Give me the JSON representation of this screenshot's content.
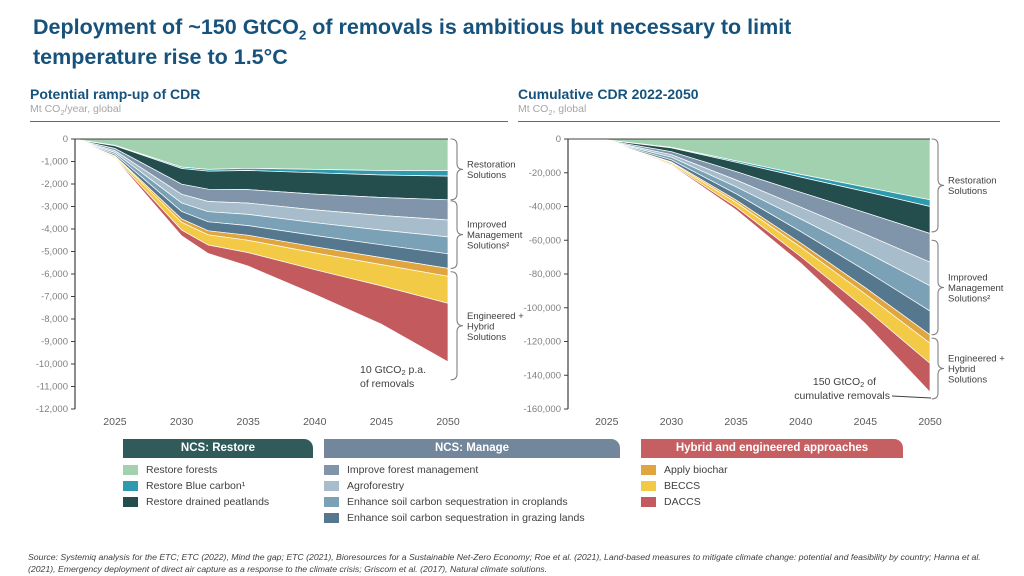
{
  "title": {
    "p1": "Deployment of ~150 GtCO",
    "sub": "2",
    "p2": " of removals is ambitious but necessary to limit",
    "line2": "temperature rise to 1.5°C"
  },
  "colors": {
    "title_navy": "#16527c",
    "header_underline": "#41719c",
    "axis_line": "#404040",
    "axis_text": "#7f7f7f",
    "xtick_text": "#595959",
    "brace": "#808080",
    "bracket_label": "#404040",
    "annotation_text": "#404040"
  },
  "chart_data": [
    {
      "type": "area",
      "stacked": true,
      "title": "Potential ramp-up of CDR",
      "unit_pre": "Mt CO",
      "unit_sub": "2",
      "unit_post": "/year, global",
      "x": [
        2022,
        2025,
        2030,
        2032,
        2035,
        2040,
        2045,
        2050
      ],
      "xticks": [
        2025,
        2030,
        2035,
        2040,
        2045,
        2050
      ],
      "ylim": [
        -12000,
        0
      ],
      "ytick_step": 1000,
      "grid": false,
      "legend_position": "bottom",
      "series": [
        {
          "name": "Restore forests",
          "color": "#a2d1af",
          "values": [
            -20,
            -280,
            -1250,
            -1350,
            -1300,
            -1350,
            -1400,
            -1400
          ]
        },
        {
          "name": "Restore Blue carbon",
          "color": "#2e9aae",
          "values": [
            -2,
            -20,
            -60,
            -80,
            -100,
            -150,
            -200,
            -250
          ]
        },
        {
          "name": "Restore drained peatlands",
          "color": "#234e4d",
          "values": [
            -5,
            -120,
            -700,
            -800,
            -850,
            -950,
            -1000,
            -1050
          ]
        },
        {
          "name": "Improve forest management",
          "color": "#8095a9",
          "values": [
            -5,
            -100,
            -450,
            -550,
            -600,
            -700,
            -800,
            -900
          ]
        },
        {
          "name": "Agroforestry",
          "color": "#a7bdcb",
          "values": [
            -3,
            -80,
            -380,
            -450,
            -500,
            -570,
            -650,
            -750
          ]
        },
        {
          "name": "Enhance soil carbon sequestration in croplands",
          "color": "#7ba1b6",
          "values": [
            -3,
            -80,
            -380,
            -450,
            -500,
            -570,
            -650,
            -750
          ]
        },
        {
          "name": "Enhance soil carbon sequestration in grazing lands",
          "color": "#56788f",
          "values": [
            -3,
            -70,
            -330,
            -400,
            -430,
            -500,
            -570,
            -650
          ]
        },
        {
          "name": "Apply biochar",
          "color": "#e0a53e",
          "values": [
            -1,
            -30,
            -150,
            -180,
            -220,
            -270,
            -310,
            -350
          ]
        },
        {
          "name": "BECCS",
          "color": "#f3ca45",
          "values": [
            -2,
            -60,
            -350,
            -450,
            -550,
            -750,
            -950,
            -1200
          ]
        },
        {
          "name": "DACCS",
          "color": "#c25a5e",
          "values": [
            -1,
            -30,
            -250,
            -380,
            -600,
            -1100,
            -1700,
            -2600
          ]
        }
      ],
      "brackets": [
        {
          "label_lines": [
            "Restoration",
            "Solutions"
          ],
          "span": [
            0,
            -2700
          ]
        },
        {
          "label_lines": [
            "Improved",
            "Management",
            "Solutions²"
          ],
          "span": [
            -2750,
            -5750
          ]
        },
        {
          "label_lines": [
            "Engineered +",
            "Hybrid",
            "Solutions"
          ],
          "span": [
            -5900,
            -10700
          ]
        }
      ],
      "annotation": {
        "pre": "10 GtCO",
        "sub": "2",
        "post": " p.a.",
        "line2": "of removals"
      }
    },
    {
      "type": "area",
      "stacked": true,
      "title": "Cumulative CDR 2022-2050",
      "unit_pre": "Mt CO",
      "unit_sub": "2",
      "unit_post": ", global",
      "x": [
        2022,
        2025,
        2030,
        2035,
        2040,
        2045,
        2050
      ],
      "xticks": [
        2025,
        2030,
        2035,
        2040,
        2045,
        2050
      ],
      "ylim": [
        -160000,
        0
      ],
      "ytick_step": 20000,
      "grid": false,
      "legend_position": "bottom",
      "series": [
        {
          "name": "Restore forests",
          "color": "#a2d1af",
          "values": [
            0,
            -600,
            -5000,
            -13000,
            -21000,
            -28500,
            -36000
          ]
        },
        {
          "name": "Restore Blue carbon",
          "color": "#2e9aae",
          "values": [
            0,
            -40,
            -300,
            -800,
            -1600,
            -2700,
            -4000
          ]
        },
        {
          "name": "Restore drained peatlands",
          "color": "#234e4d",
          "values": [
            0,
            -250,
            -2200,
            -5500,
            -9000,
            -12500,
            -16000
          ]
        },
        {
          "name": "Improve forest management",
          "color": "#8095a9",
          "values": [
            0,
            -200,
            -1800,
            -5000,
            -8800,
            -12800,
            -17000
          ]
        },
        {
          "name": "Agroforestry",
          "color": "#a7bdcb",
          "values": [
            0,
            -160,
            -1500,
            -4000,
            -7000,
            -10400,
            -14000
          ]
        },
        {
          "name": "Enhance soil carbon sequestration in croplands",
          "color": "#7ba1b6",
          "values": [
            0,
            -160,
            -1500,
            -4200,
            -7500,
            -11100,
            -15000
          ]
        },
        {
          "name": "Enhance soil carbon sequestration in grazing lands",
          "color": "#56788f",
          "values": [
            0,
            -140,
            -1300,
            -3700,
            -6700,
            -10200,
            -14000
          ]
        },
        {
          "name": "Apply biochar",
          "color": "#e0a53e",
          "values": [
            0,
            -60,
            -500,
            -1400,
            -2500,
            -3700,
            -5000
          ]
        },
        {
          "name": "BECCS",
          "color": "#f3ca45",
          "values": [
            0,
            -120,
            -900,
            -2700,
            -5500,
            -8600,
            -12000
          ]
        },
        {
          "name": "DACCS",
          "color": "#c25a5e",
          "values": [
            0,
            -70,
            -500,
            -1700,
            -4000,
            -9000,
            -17000
          ]
        }
      ],
      "brackets": [
        {
          "label_lines": [
            "Restoration",
            "Solutions"
          ],
          "span": [
            0,
            -55000
          ]
        },
        {
          "label_lines": [
            "Improved",
            "Management",
            "Solutions²"
          ],
          "span": [
            -60000,
            -116000
          ]
        },
        {
          "label_lines": [
            "Engineered +",
            "Hybrid",
            "Solutions"
          ],
          "span": [
            -118000,
            -154000
          ]
        }
      ],
      "annotation": {
        "pre": "150 GtCO",
        "sub": "2",
        "post": " of",
        "line2": "cumulative removals"
      }
    }
  ],
  "legend": {
    "groups": [
      {
        "title": "NCS: Restore",
        "color": "#315b5b",
        "items": [
          {
            "label": "Restore forests",
            "color": "#a2d1af"
          },
          {
            "label": "Restore Blue carbon¹",
            "color": "#2e9aae"
          },
          {
            "label": "Restore drained peatlands",
            "color": "#234e4d"
          }
        ]
      },
      {
        "title": "NCS: Manage",
        "color": "#72879c",
        "items": [
          {
            "label": "Improve forest management",
            "color": "#8095a9"
          },
          {
            "label": "Agroforestry",
            "color": "#a7bdcb"
          },
          {
            "label": "Enhance soil carbon sequestration in croplands",
            "color": "#7ba1b6"
          },
          {
            "label": "Enhance soil carbon sequestration in grazing lands",
            "color": "#56788f"
          }
        ]
      },
      {
        "title": "Hybrid and engineered approaches",
        "color": "#c65f62",
        "items": [
          {
            "label": "Apply biochar",
            "color": "#e0a53e"
          },
          {
            "label": "BECCS",
            "color": "#f3ca45"
          },
          {
            "label": "DACCS",
            "color": "#c25a5e"
          }
        ]
      }
    ]
  },
  "source": "Source: Systemiq analysis for the ETC; ETC (2022), Mind the gap; ETC (2021), Bioresources for a Sustainable Net-Zero Economy; Roe et al. (2021), Land-based measures to mitigate climate change: potential and feasibility by country; Hanna et al. (2021), Emergency deployment of direct air capture as a response to the climate crisis; Griscom et al. (2017), Natural climate solutions."
}
